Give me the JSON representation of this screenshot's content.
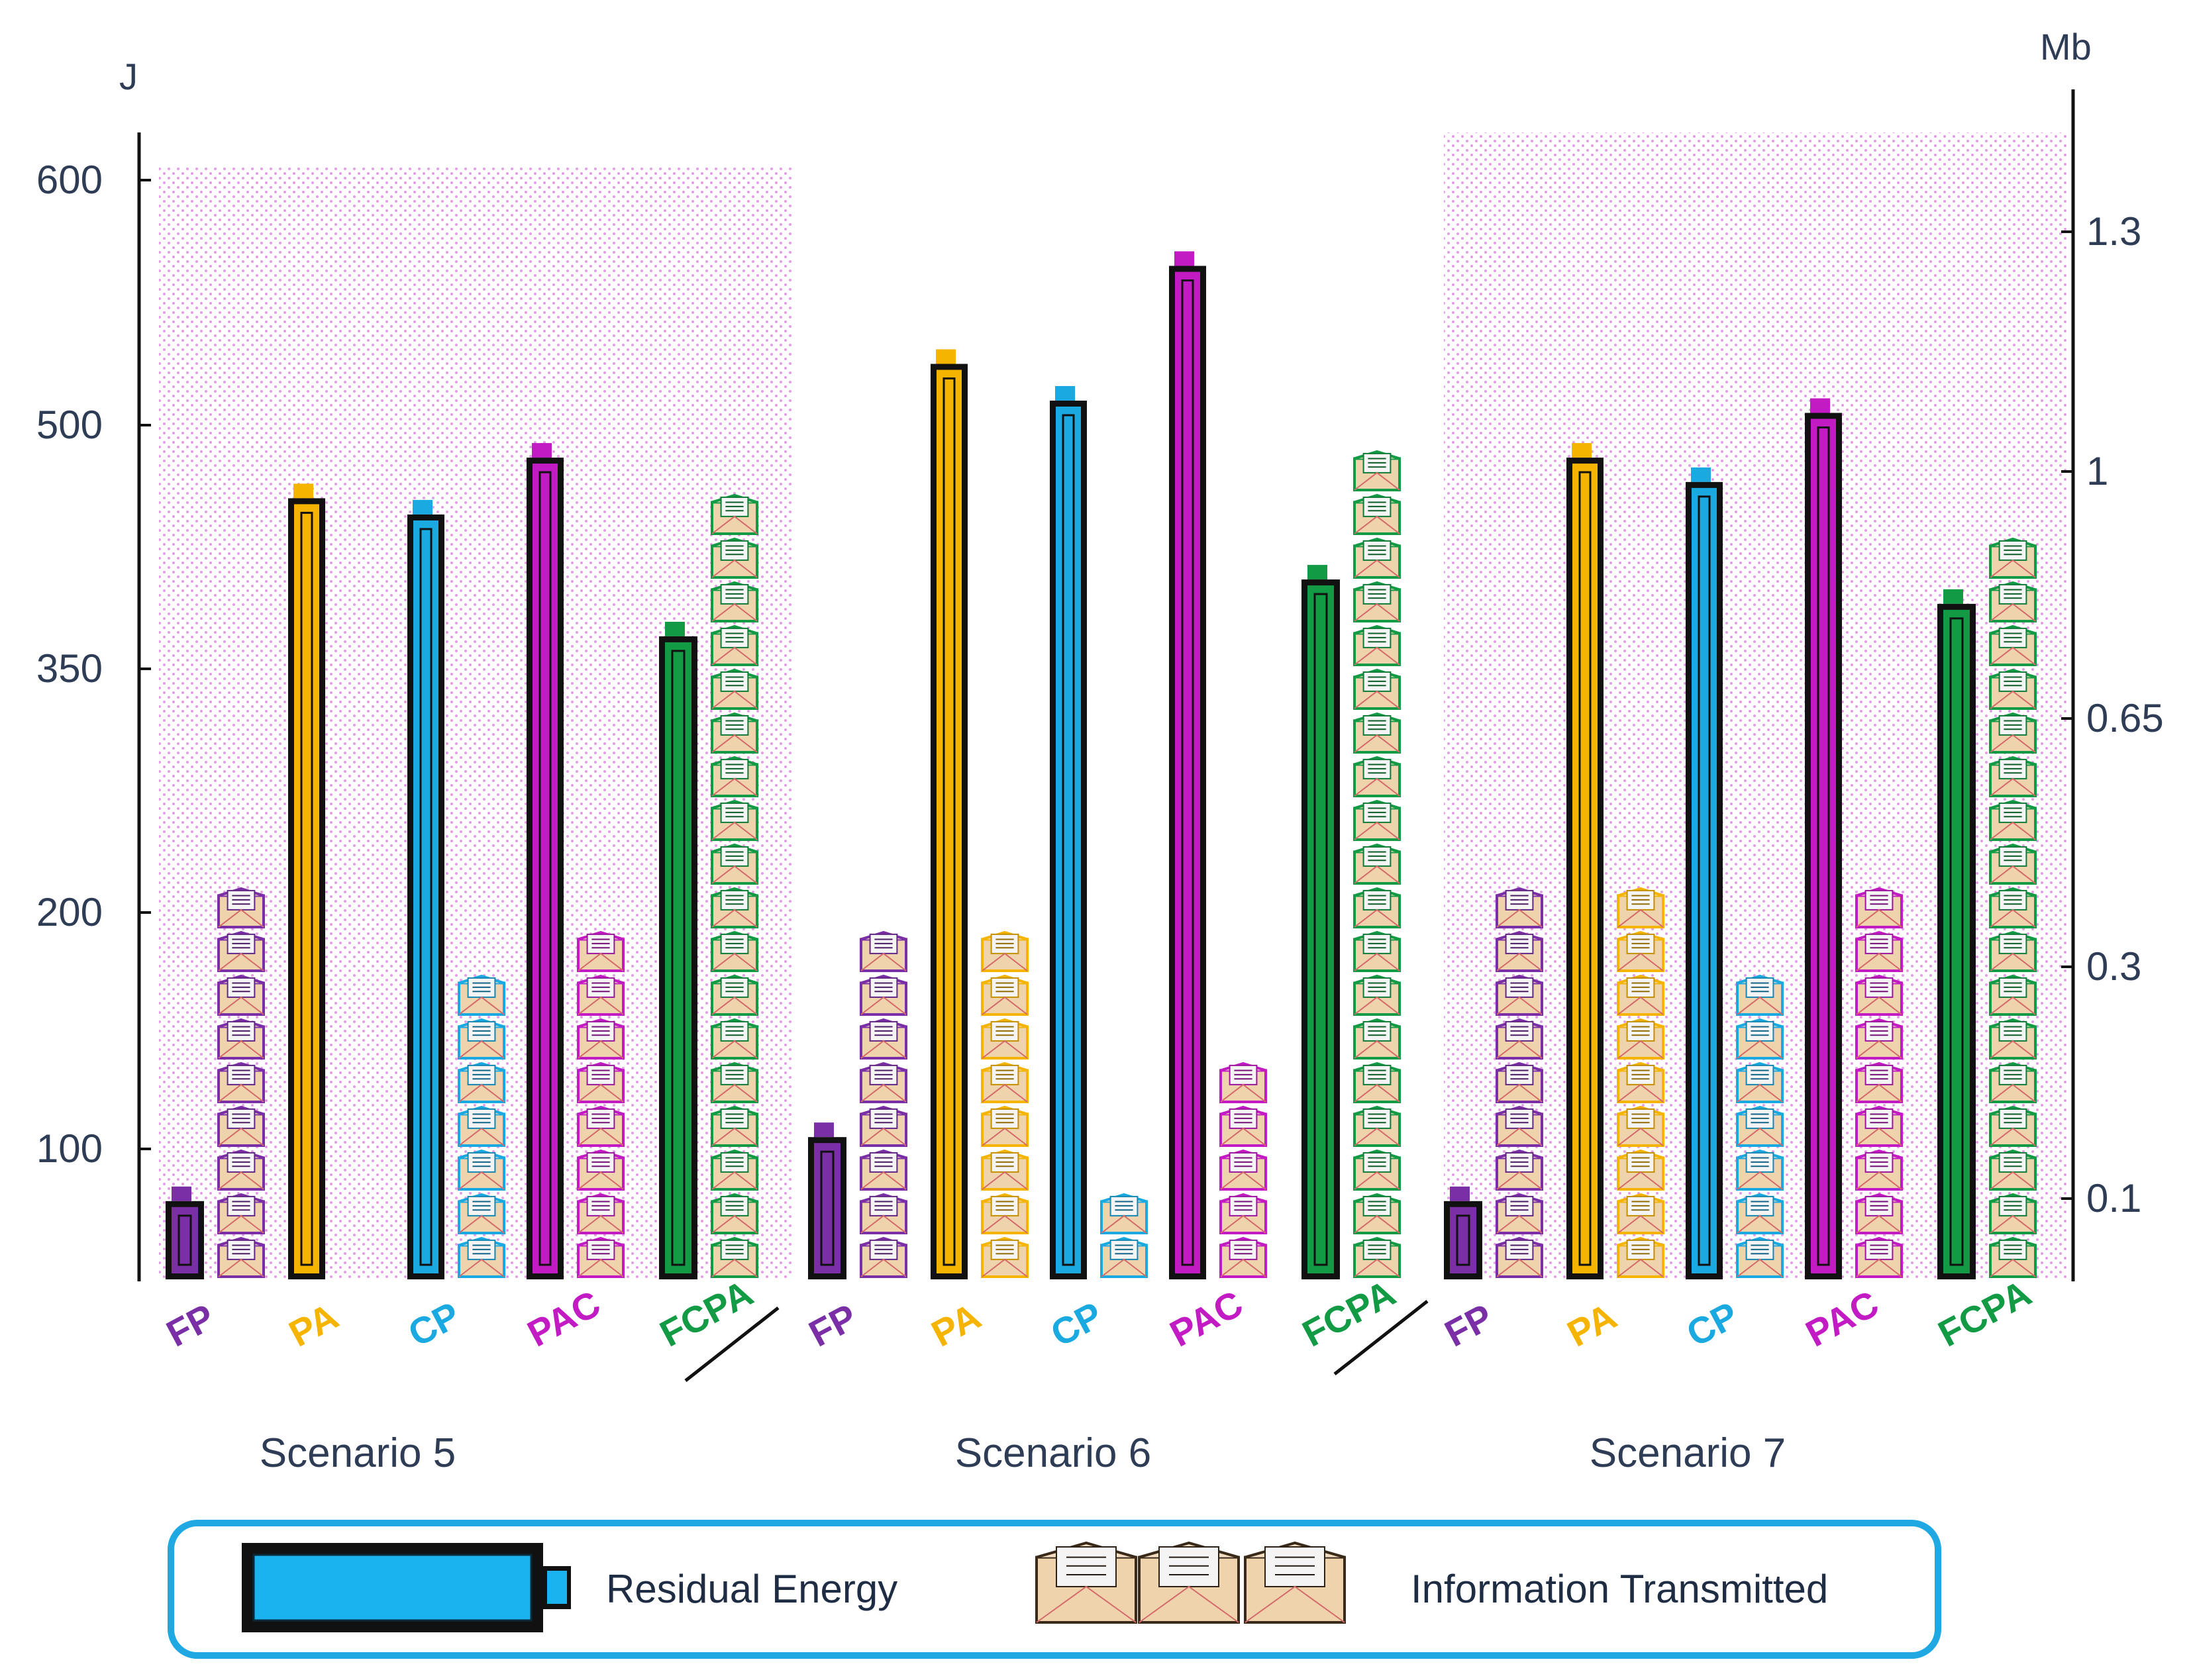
{
  "chart_data": {
    "type": "bar",
    "left_axis_unit": "J",
    "right_axis_unit": "Mb",
    "left_ticks": [
      100,
      200,
      350,
      500,
      600
    ],
    "right_ticks": [
      0.1,
      0.3,
      0.65,
      1,
      1.3
    ],
    "methods": [
      "FP",
      "PA",
      "CP",
      "PAC",
      "FCPA"
    ],
    "method_colors": [
      "#7b2fa6",
      "#f4b400",
      "#1aa9e0",
      "#c21bc4",
      "#129a45"
    ],
    "scenarios": [
      {
        "name": "Scenario 5",
        "residual_energy_J": [
          80,
          455,
          445,
          480,
          370
        ],
        "information_Mb": [
          0.43,
          null,
          0.29,
          0.36,
          0.96
        ]
      },
      {
        "name": "Scenario 6",
        "residual_energy_J": [
          105,
          525,
          510,
          565,
          405
        ],
        "information_Mb": [
          0.35,
          0.35,
          0.1,
          0.22,
          1.03
        ]
      },
      {
        "name": "Scenario 7",
        "residual_energy_J": [
          80,
          480,
          465,
          505,
          390
        ],
        "information_Mb": [
          0.44,
          0.44,
          0.29,
          0.43,
          0.88
        ]
      }
    ],
    "legend": [
      "Residual Energy",
      "Information Transmitted"
    ]
  }
}
